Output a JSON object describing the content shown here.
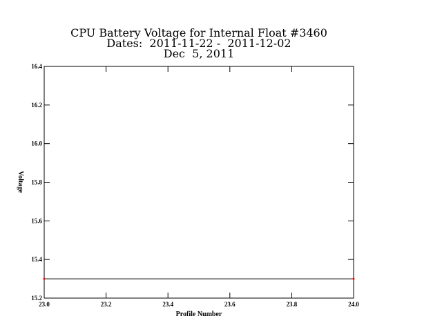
{
  "chart_data": {
    "type": "line",
    "title": [
      "CPU Battery Voltage for Internal Float #3460",
      "Dates:  2011-11-22 -  2011-12-02",
      "Dec  5, 2011"
    ],
    "x_label": "Profile Number",
    "y_label": "Voltage",
    "x": [
      23,
      24
    ],
    "series": [
      {
        "color": "#000000",
        "marker_color": "#ff0000",
        "values": [
          15.3,
          15.3
        ]
      }
    ],
    "xlim": [
      23,
      24
    ],
    "xticks": [
      {
        "value": 23,
        "label": "23.0"
      },
      23.2,
      23.4,
      23.6,
      23.8,
      {
        "value": 24,
        "label": "24.0"
      }
    ],
    "ylim": [
      15.2,
      16.4
    ],
    "yticks": [
      15.2,
      15.4,
      15.6,
      15.8,
      {
        "value": 16,
        "label": "16.0"
      },
      16.2,
      16.4
    ],
    "grid": false
  }
}
